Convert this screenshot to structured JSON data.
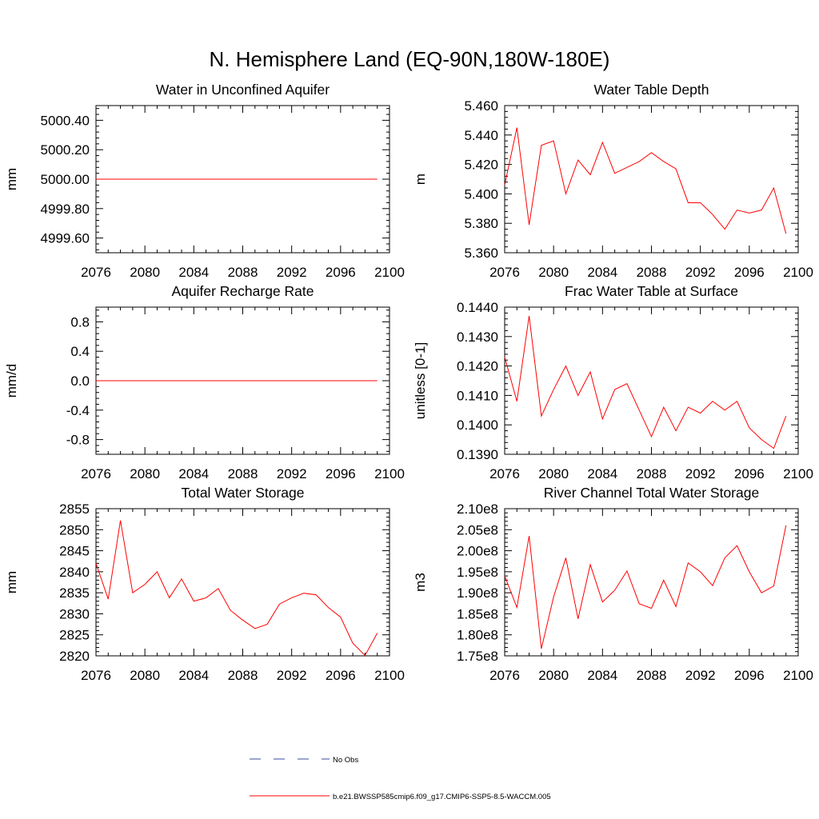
{
  "figure_title": "N. Hemisphere Land (EQ-90N,180W-180E)",
  "colors": {
    "series": "#ff0000",
    "obs": "#3b4ba0",
    "axis": "#000000"
  },
  "legend": [
    {
      "label": "No Obs",
      "style": "dashed",
      "color": "#3b4ba0"
    },
    {
      "label": "b.e21.BWSSP585cmip6.f09_g17.CMIP6-SSP5-8.5-WACCM.005",
      "style": "solid",
      "color": "#ff0000"
    }
  ],
  "chart_data": [
    {
      "type": "line",
      "title": "Water in Unconfined Aquifer",
      "xlabel": "",
      "ylabel": "mm",
      "xlim": [
        2076,
        2100
      ],
      "ylim": [
        4999.5,
        5000.5
      ],
      "xticks": [
        "2076",
        "2080",
        "2084",
        "2088",
        "2092",
        "2096",
        "2100"
      ],
      "yticks": [
        {
          "value": 4999.6,
          "label": "4999.60"
        },
        {
          "value": 4999.8,
          "label": "4999.80"
        },
        {
          "value": 5000.0,
          "label": "5000.00"
        },
        {
          "value": 5000.2,
          "label": "5000.20"
        },
        {
          "value": 5000.4,
          "label": "5000.40"
        }
      ],
      "x": [
        2076,
        2077,
        2078,
        2079,
        2080,
        2081,
        2082,
        2083,
        2084,
        2085,
        2086,
        2087,
        2088,
        2089,
        2090,
        2091,
        2092,
        2093,
        2094,
        2095,
        2096,
        2097,
        2098,
        2099
      ],
      "series": [
        {
          "name": "b.e21.BWSSP585cmip6.f09_g17.CMIP6-SSP5-8.5-WACCM.005",
          "values": [
            5000,
            5000,
            5000,
            5000,
            5000,
            5000,
            5000,
            5000,
            5000,
            5000,
            5000,
            5000,
            5000,
            5000,
            5000,
            5000,
            5000,
            5000,
            5000,
            5000,
            5000,
            5000,
            5000,
            5000
          ]
        }
      ]
    },
    {
      "type": "line",
      "title": "Water Table Depth",
      "xlabel": "",
      "ylabel": "m",
      "xlim": [
        2076,
        2100
      ],
      "ylim": [
        5.36,
        5.46
      ],
      "xticks": [
        "2076",
        "2080",
        "2084",
        "2088",
        "2092",
        "2096",
        "2100"
      ],
      "yticks": [
        {
          "value": 5.36,
          "label": "5.360"
        },
        {
          "value": 5.38,
          "label": "5.380"
        },
        {
          "value": 5.4,
          "label": "5.400"
        },
        {
          "value": 5.42,
          "label": "5.420"
        },
        {
          "value": 5.44,
          "label": "5.440"
        },
        {
          "value": 5.46,
          "label": "5.460"
        }
      ],
      "x": [
        2076,
        2077,
        2078,
        2079,
        2080,
        2081,
        2082,
        2083,
        2084,
        2085,
        2086,
        2087,
        2088,
        2089,
        2090,
        2091,
        2092,
        2093,
        2094,
        2095,
        2096,
        2097,
        2098,
        2099
      ],
      "series": [
        {
          "name": "b.e21.BWSSP585cmip6.f09_g17.CMIP6-SSP5-8.5-WACCM.005",
          "values": [
            5.406,
            5.445,
            5.379,
            5.433,
            5.436,
            5.4,
            5.423,
            5.413,
            5.435,
            5.414,
            5.418,
            5.422,
            5.428,
            5.422,
            5.417,
            5.394,
            5.394,
            5.386,
            5.376,
            5.389,
            5.387,
            5.389,
            5.404,
            5.373
          ]
        }
      ]
    },
    {
      "type": "line",
      "title": "Aquifer Recharge Rate",
      "xlabel": "",
      "ylabel": "mm/d",
      "xlim": [
        2076,
        2100
      ],
      "ylim": [
        -1.0,
        1.0
      ],
      "xticks": [
        "2076",
        "2080",
        "2084",
        "2088",
        "2092",
        "2096",
        "2100"
      ],
      "yticks": [
        {
          "value": -0.8,
          "label": "-0.8"
        },
        {
          "value": -0.4,
          "label": "-0.4"
        },
        {
          "value": 0.0,
          "label": "0.0"
        },
        {
          "value": 0.4,
          "label": "0.4"
        },
        {
          "value": 0.8,
          "label": "0.8"
        }
      ],
      "x": [
        2076,
        2077,
        2078,
        2079,
        2080,
        2081,
        2082,
        2083,
        2084,
        2085,
        2086,
        2087,
        2088,
        2089,
        2090,
        2091,
        2092,
        2093,
        2094,
        2095,
        2096,
        2097,
        2098,
        2099
      ],
      "series": [
        {
          "name": "b.e21.BWSSP585cmip6.f09_g17.CMIP6-SSP5-8.5-WACCM.005",
          "values": [
            0,
            0,
            0,
            0,
            0,
            0,
            0,
            0,
            0,
            0,
            0,
            0,
            0,
            0,
            0,
            0,
            0,
            0,
            0,
            0,
            0,
            0,
            0,
            0
          ]
        }
      ]
    },
    {
      "type": "line",
      "title": "Frac Water Table at Surface",
      "xlabel": "",
      "ylabel": "unitless [0-1]",
      "xlim": [
        2076,
        2100
      ],
      "ylim": [
        0.139,
        0.144
      ],
      "xticks": [
        "2076",
        "2080",
        "2084",
        "2088",
        "2092",
        "2096",
        "2100"
      ],
      "yticks": [
        {
          "value": 0.139,
          "label": "0.1390"
        },
        {
          "value": 0.14,
          "label": "0.1400"
        },
        {
          "value": 0.141,
          "label": "0.1410"
        },
        {
          "value": 0.142,
          "label": "0.1420"
        },
        {
          "value": 0.143,
          "label": "0.1430"
        },
        {
          "value": 0.144,
          "label": "0.1440"
        }
      ],
      "x": [
        2076,
        2077,
        2078,
        2079,
        2080,
        2081,
        2082,
        2083,
        2084,
        2085,
        2086,
        2087,
        2088,
        2089,
        2090,
        2091,
        2092,
        2093,
        2094,
        2095,
        2096,
        2097,
        2098,
        2099
      ],
      "series": [
        {
          "name": "b.e21.BWSSP585cmip6.f09_g17.CMIP6-SSP5-8.5-WACCM.005",
          "values": [
            0.1423,
            0.1408,
            0.1437,
            0.1403,
            0.1412,
            0.142,
            0.141,
            0.1418,
            0.1402,
            0.1412,
            0.1414,
            0.1405,
            0.1396,
            0.1406,
            0.1398,
            0.1406,
            0.1404,
            0.1408,
            0.1405,
            0.1408,
            0.1399,
            0.1395,
            0.1392,
            0.1403
          ]
        }
      ]
    },
    {
      "type": "line",
      "title": "Total Water Storage",
      "xlabel": "",
      "ylabel": "mm",
      "xlim": [
        2076,
        2100
      ],
      "ylim": [
        2820,
        2855
      ],
      "xticks": [
        "2076",
        "2080",
        "2084",
        "2088",
        "2092",
        "2096",
        "2100"
      ],
      "yticks": [
        {
          "value": 2820,
          "label": "2820"
        },
        {
          "value": 2825,
          "label": "2825"
        },
        {
          "value": 2830,
          "label": "2830"
        },
        {
          "value": 2835,
          "label": "2835"
        },
        {
          "value": 2840,
          "label": "2840"
        },
        {
          "value": 2845,
          "label": "2845"
        },
        {
          "value": 2850,
          "label": "2850"
        },
        {
          "value": 2855,
          "label": "2855"
        }
      ],
      "x": [
        2076,
        2077,
        2078,
        2079,
        2080,
        2081,
        2082,
        2083,
        2084,
        2085,
        2086,
        2087,
        2088,
        2089,
        2090,
        2091,
        2092,
        2093,
        2094,
        2095,
        2096,
        2097,
        2098,
        2099
      ],
      "series": [
        {
          "name": "b.e21.BWSSP585cmip6.f09_g17.CMIP6-SSP5-8.5-WACCM.005",
          "values": [
            2842,
            2833.5,
            2852.2,
            2835,
            2837,
            2840,
            2833.8,
            2838.3,
            2833,
            2833.8,
            2836,
            2830.8,
            2828.5,
            2826.5,
            2827.5,
            2832.3,
            2833.8,
            2834.9,
            2834.5,
            2831.5,
            2829.2,
            2823,
            2820.1,
            2825.4
          ]
        }
      ]
    },
    {
      "type": "line",
      "title": "River Channel Total Water Storage",
      "xlabel": "",
      "ylabel": "m3",
      "xlim": [
        2076,
        2100
      ],
      "ylim": [
        175000000,
        210000000
      ],
      "xticks": [
        "2076",
        "2080",
        "2084",
        "2088",
        "2092",
        "2096",
        "2100"
      ],
      "yticks": [
        {
          "value": 175000000,
          "label": "1.75e8"
        },
        {
          "value": 180000000,
          "label": "1.80e8"
        },
        {
          "value": 185000000,
          "label": "1.85e8"
        },
        {
          "value": 190000000,
          "label": "1.90e8"
        },
        {
          "value": 195000000,
          "label": "1.95e8"
        },
        {
          "value": 200000000,
          "label": "2.00e8"
        },
        {
          "value": 205000000,
          "label": "2.05e8"
        },
        {
          "value": 210000000,
          "label": "2.10e8"
        }
      ],
      "x": [
        2076,
        2077,
        2078,
        2079,
        2080,
        2081,
        2082,
        2083,
        2084,
        2085,
        2086,
        2087,
        2088,
        2089,
        2090,
        2091,
        2092,
        2093,
        2094,
        2095,
        2096,
        2097,
        2098,
        2099
      ],
      "series": [
        {
          "name": "b.e21.BWSSP585cmip6.f09_g17.CMIP6-SSP5-8.5-WACCM.005",
          "values": [
            194000000,
            186500000,
            203500000,
            176700000,
            189000000,
            198300000,
            183800000,
            196700000,
            187800000,
            190600000,
            195200000,
            187400000,
            186300000,
            193000000,
            186700000,
            197100000,
            195000000,
            191700000,
            198300000,
            201200000,
            195000000,
            190000000,
            191600000,
            206000000
          ]
        }
      ]
    }
  ]
}
